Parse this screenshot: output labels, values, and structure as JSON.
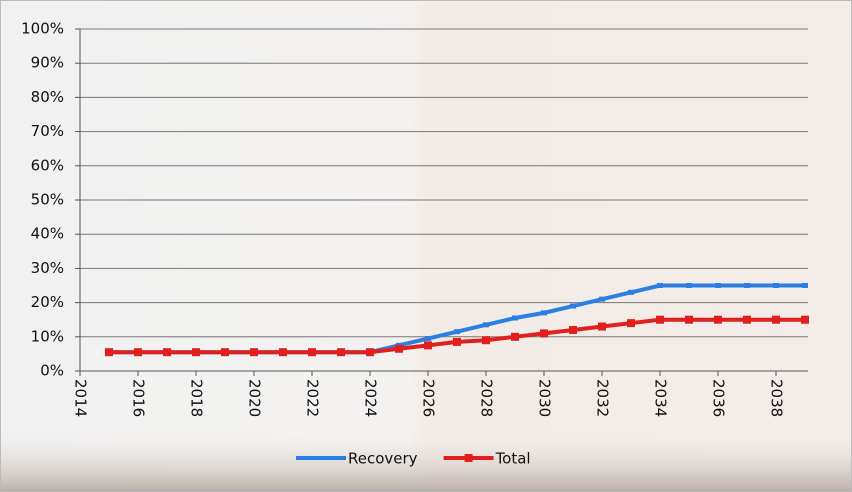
{
  "chart_data": {
    "type": "line",
    "x": [
      2015,
      2016,
      2017,
      2018,
      2019,
      2020,
      2021,
      2022,
      2023,
      2024,
      2025,
      2026,
      2027,
      2028,
      2029,
      2030,
      2031,
      2032,
      2033,
      2034,
      2035,
      2036,
      2037,
      2038,
      2039
    ],
    "series": [
      {
        "name": "Recovery",
        "color": "#2b7fe3",
        "marker": "dash",
        "values": [
          5.5,
          5.5,
          5.5,
          5.5,
          5.5,
          5.5,
          5.5,
          5.5,
          5.5,
          5.5,
          7.5,
          9.5,
          11.5,
          13.5,
          15.5,
          17,
          19,
          21,
          23,
          25,
          25,
          25,
          25,
          25,
          25
        ]
      },
      {
        "name": "Total",
        "color": "#e0201e",
        "marker": "square",
        "values": [
          5.5,
          5.5,
          5.5,
          5.5,
          5.5,
          5.5,
          5.5,
          5.5,
          5.5,
          5.5,
          6.5,
          7.5,
          8.5,
          9,
          10,
          11,
          12,
          13,
          14,
          15,
          15,
          15,
          15,
          15,
          15
        ]
      }
    ],
    "xlim": [
      2014,
      2039
    ],
    "xticks": [
      2014,
      2016,
      2018,
      2020,
      2022,
      2024,
      2026,
      2028,
      2030,
      2032,
      2034,
      2036,
      2038
    ],
    "ylim": [
      0,
      100
    ],
    "yticks": [
      {
        "value": 0,
        "label": "0%"
      },
      {
        "value": 10,
        "label": "10%"
      },
      {
        "value": 20,
        "label": "20%"
      },
      {
        "value": 30,
        "label": "30%"
      },
      {
        "value": 40,
        "label": "40%"
      },
      {
        "value": 50,
        "label": "50%"
      },
      {
        "value": 60,
        "label": "60%"
      },
      {
        "value": 70,
        "label": "70%"
      },
      {
        "value": 80,
        "label": "80%"
      },
      {
        "value": 90,
        "label": "90%"
      },
      {
        "value": 100,
        "label": "100%"
      }
    ],
    "grid": true,
    "legend": "bottom"
  }
}
